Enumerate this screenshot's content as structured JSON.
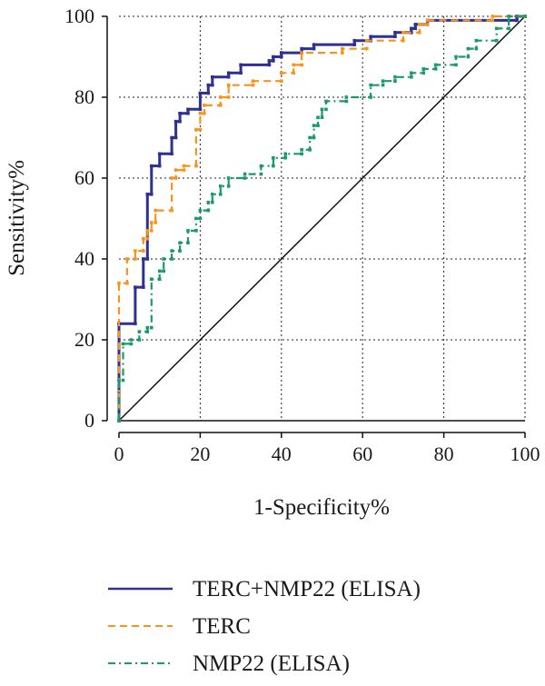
{
  "chart_data": {
    "type": "line",
    "xlabel": "1-Specificity%",
    "ylabel": "Sensitivity%",
    "xlim": [
      0,
      100
    ],
    "ylim": [
      0,
      100
    ],
    "xticks": [
      "0",
      "20",
      "40",
      "60",
      "80",
      "100"
    ],
    "yticks": [
      "0",
      "20",
      "40",
      "60",
      "80",
      "100"
    ],
    "grid": "dotted",
    "legend_position": "bottom",
    "diagonal_reference": [
      [
        0,
        0
      ],
      [
        100,
        100
      ]
    ],
    "series": [
      {
        "name": "TERC+NMP22 (ELISA)",
        "color": "#2e3192",
        "style": "solid",
        "points": [
          [
            0,
            0
          ],
          [
            0,
            24
          ],
          [
            4,
            24
          ],
          [
            4,
            33
          ],
          [
            6,
            33
          ],
          [
            6,
            40
          ],
          [
            7,
            40
          ],
          [
            7,
            56
          ],
          [
            8,
            56
          ],
          [
            8,
            63
          ],
          [
            10,
            63
          ],
          [
            10,
            66
          ],
          [
            13,
            66
          ],
          [
            13,
            70
          ],
          [
            14,
            70
          ],
          [
            14,
            74
          ],
          [
            15,
            74
          ],
          [
            15,
            76
          ],
          [
            17,
            76
          ],
          [
            17,
            77
          ],
          [
            20,
            77
          ],
          [
            20,
            81
          ],
          [
            22,
            81
          ],
          [
            22,
            83
          ],
          [
            23,
            83
          ],
          [
            23,
            85
          ],
          [
            27,
            85
          ],
          [
            27,
            86
          ],
          [
            30,
            86
          ],
          [
            30,
            88
          ],
          [
            37,
            88
          ],
          [
            37,
            89
          ],
          [
            38,
            89
          ],
          [
            38,
            90
          ],
          [
            40,
            90
          ],
          [
            40,
            91
          ],
          [
            45,
            91
          ],
          [
            45,
            92
          ],
          [
            48,
            92
          ],
          [
            48,
            93
          ],
          [
            58,
            93
          ],
          [
            58,
            94
          ],
          [
            62,
            94
          ],
          [
            62,
            95
          ],
          [
            68,
            95
          ],
          [
            68,
            96
          ],
          [
            72,
            96
          ],
          [
            72,
            97
          ],
          [
            73,
            97
          ],
          [
            73,
            98
          ],
          [
            76,
            98
          ],
          [
            76,
            99
          ],
          [
            98,
            99
          ],
          [
            98,
            100
          ],
          [
            100,
            100
          ]
        ]
      },
      {
        "name": "TERC",
        "color": "#f7941d",
        "style": "dashed",
        "points": [
          [
            0,
            0
          ],
          [
            0,
            34
          ],
          [
            2,
            34
          ],
          [
            2,
            40
          ],
          [
            4,
            40
          ],
          [
            4,
            42
          ],
          [
            6,
            42
          ],
          [
            6,
            45
          ],
          [
            7,
            45
          ],
          [
            7,
            47
          ],
          [
            8,
            47
          ],
          [
            8,
            49
          ],
          [
            9,
            49
          ],
          [
            9,
            52
          ],
          [
            13,
            52
          ],
          [
            13,
            60
          ],
          [
            14,
            60
          ],
          [
            14,
            62
          ],
          [
            16,
            62
          ],
          [
            16,
            63
          ],
          [
            19,
            63
          ],
          [
            19,
            72
          ],
          [
            20,
            72
          ],
          [
            20,
            76
          ],
          [
            21,
            76
          ],
          [
            21,
            78
          ],
          [
            25,
            78
          ],
          [
            25,
            80
          ],
          [
            27,
            80
          ],
          [
            27,
            83
          ],
          [
            33,
            83
          ],
          [
            33,
            84
          ],
          [
            40,
            84
          ],
          [
            40,
            86
          ],
          [
            43,
            86
          ],
          [
            43,
            88
          ],
          [
            45,
            88
          ],
          [
            45,
            91
          ],
          [
            55,
            91
          ],
          [
            55,
            92
          ],
          [
            61,
            92
          ],
          [
            61,
            94
          ],
          [
            70,
            94
          ],
          [
            70,
            96
          ],
          [
            74,
            96
          ],
          [
            74,
            98
          ],
          [
            76,
            98
          ],
          [
            76,
            99
          ],
          [
            92,
            99
          ],
          [
            92,
            100
          ],
          [
            100,
            100
          ]
        ]
      },
      {
        "name": "NMP22 (ELISA)",
        "color": "#1a9a6c",
        "style": "dash-dot",
        "points": [
          [
            0,
            0
          ],
          [
            0,
            10
          ],
          [
            1,
            10
          ],
          [
            1,
            19
          ],
          [
            3,
            19
          ],
          [
            3,
            20
          ],
          [
            5,
            20
          ],
          [
            5,
            22
          ],
          [
            7,
            22
          ],
          [
            7,
            23
          ],
          [
            8,
            23
          ],
          [
            8,
            35
          ],
          [
            10,
            35
          ],
          [
            10,
            37
          ],
          [
            11,
            37
          ],
          [
            11,
            40
          ],
          [
            13,
            40
          ],
          [
            13,
            42
          ],
          [
            15,
            42
          ],
          [
            15,
            44
          ],
          [
            17,
            44
          ],
          [
            17,
            47
          ],
          [
            19,
            47
          ],
          [
            19,
            50
          ],
          [
            20,
            50
          ],
          [
            20,
            52
          ],
          [
            22,
            52
          ],
          [
            22,
            54
          ],
          [
            23,
            54
          ],
          [
            23,
            56
          ],
          [
            25,
            56
          ],
          [
            25,
            58
          ],
          [
            27,
            58
          ],
          [
            27,
            60
          ],
          [
            31,
            60
          ],
          [
            31,
            61
          ],
          [
            35,
            61
          ],
          [
            35,
            63
          ],
          [
            38,
            63
          ],
          [
            38,
            65
          ],
          [
            41,
            65
          ],
          [
            41,
            66
          ],
          [
            45,
            66
          ],
          [
            45,
            67
          ],
          [
            47,
            67
          ],
          [
            47,
            70
          ],
          [
            48,
            70
          ],
          [
            48,
            73
          ],
          [
            49,
            73
          ],
          [
            49,
            75
          ],
          [
            50,
            75
          ],
          [
            50,
            77
          ],
          [
            51,
            77
          ],
          [
            51,
            79
          ],
          [
            56,
            79
          ],
          [
            56,
            80
          ],
          [
            62,
            80
          ],
          [
            62,
            83
          ],
          [
            65,
            83
          ],
          [
            65,
            84
          ],
          [
            68,
            84
          ],
          [
            68,
            85
          ],
          [
            72,
            85
          ],
          [
            72,
            86
          ],
          [
            75,
            86
          ],
          [
            75,
            87
          ],
          [
            78,
            87
          ],
          [
            78,
            88
          ],
          [
            83,
            88
          ],
          [
            83,
            90
          ],
          [
            86,
            90
          ],
          [
            86,
            92
          ],
          [
            88,
            92
          ],
          [
            88,
            94
          ],
          [
            93,
            94
          ],
          [
            93,
            97
          ],
          [
            96,
            97
          ],
          [
            96,
            100
          ],
          [
            100,
            100
          ]
        ]
      }
    ]
  }
}
